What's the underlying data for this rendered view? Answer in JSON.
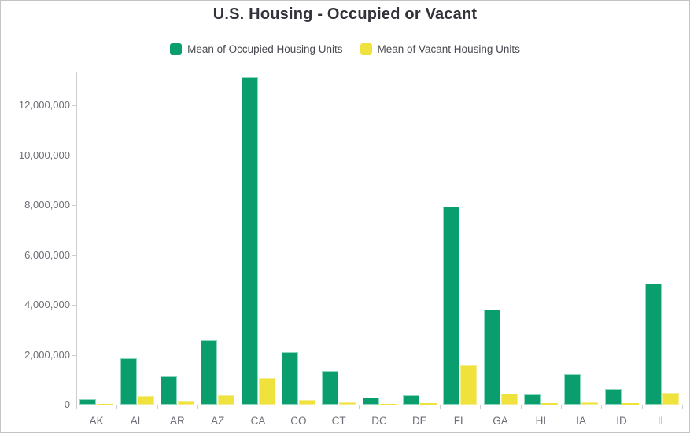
{
  "title": "U.S. Housing - Occupied or Vacant",
  "legend": {
    "items": [
      {
        "label": "Mean of Occupied Housing Units",
        "color": "#0a9e6f"
      },
      {
        "label": "Mean of Vacant Housing Units",
        "color": "#efe23d"
      }
    ]
  },
  "chart_data": {
    "type": "bar",
    "title": "U.S. Housing - Occupied or Vacant",
    "categories": [
      "AK",
      "AL",
      "AR",
      "AZ",
      "CA",
      "CO",
      "CT",
      "DC",
      "DE",
      "FL",
      "GA",
      "HI",
      "IA",
      "ID",
      "IL"
    ],
    "series": [
      {
        "name": "Mean of Occupied Housing Units",
        "color": "#0a9e6f",
        "border_color": "#8ed8bd",
        "values": [
          220000,
          1860000,
          1130000,
          2590000,
          13130000,
          2100000,
          1370000,
          295000,
          380000,
          7930000,
          3820000,
          420000,
          1230000,
          630000,
          4860000
        ]
      },
      {
        "name": "Mean of Vacant Housing Units",
        "color": "#efe23d",
        "border_color": "#f6ee8e",
        "values": [
          45000,
          360000,
          160000,
          370000,
          1070000,
          180000,
          95000,
          30000,
          70000,
          1580000,
          440000,
          55000,
          105000,
          55000,
          460000
        ]
      }
    ],
    "xlabel": "",
    "ylabel": "",
    "ylim": [
      0,
      13400000
    ],
    "yticks": [
      0,
      2000000,
      4000000,
      6000000,
      8000000,
      10000000,
      12000000
    ],
    "ytick_labels": [
      "0",
      "2,000,000",
      "4,000,000",
      "6,000,000",
      "8,000,000",
      "10,000,000",
      "12,000,000"
    ],
    "grid": false,
    "legend_position": "top"
  },
  "colors": {
    "axis": "#cdcdcd",
    "tick_text": "#6e6e78",
    "title_text": "#32323a",
    "legend_text": "#4a4a52",
    "frame_border": "#c4c4c4"
  }
}
